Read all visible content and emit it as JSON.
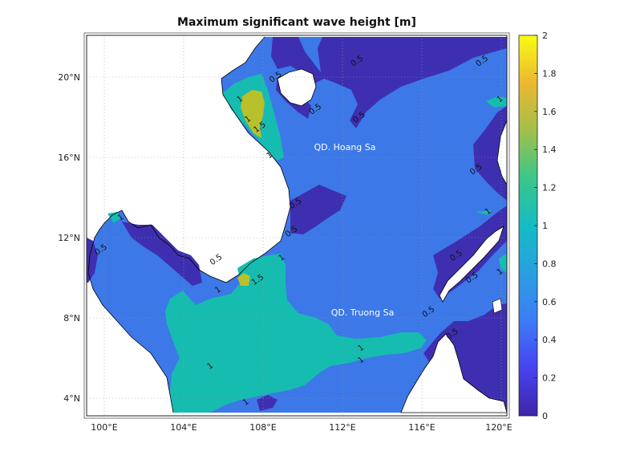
{
  "title": "Maximum significant wave height [m]",
  "x_ticks": [
    "100°E",
    "104°E",
    "108°E",
    "112°E",
    "116°E",
    "120°E"
  ],
  "y_ticks": [
    "20°N",
    "16°N",
    "12°N",
    "8°N",
    "4°N"
  ],
  "colorbar_ticks": [
    "2",
    "1.8",
    "1.6",
    "1.4",
    "1.2",
    "1",
    "0.8",
    "0.6",
    "0.4",
    "0.2",
    "0"
  ],
  "colors": {
    "land": "#ffffff",
    "level_0": "#3e2fb0",
    "level_05": "#3c78e8",
    "level_1": "#16bcb0",
    "level_15": "#b8c02a",
    "colormap": [
      "#3e26a8",
      "#4743f0",
      "#3d7cf6",
      "#2a9fe0",
      "#14bcc4",
      "#3bc68a",
      "#a2c04a",
      "#ecb830",
      "#f9fb15"
    ]
  },
  "place_labels": [
    "QD. Hoang Sa",
    "QD. Truong Sa"
  ],
  "contour_labels": [
    {
      "text": "0.5",
      "lon": 112.8,
      "lat": 20.7
    },
    {
      "text": "0.5",
      "lon": 119.1,
      "lat": 20.7
    },
    {
      "text": "0.5",
      "lon": 108.7,
      "lat": 19.9
    },
    {
      "text": "0.5",
      "lon": 110.7,
      "lat": 18.3
    },
    {
      "text": "0.5",
      "lon": 112.9,
      "lat": 17.9
    },
    {
      "text": "1",
      "lon": 106.9,
      "lat": 18.8
    },
    {
      "text": "1",
      "lon": 107.3,
      "lat": 17.8
    },
    {
      "text": "1.5",
      "lon": 107.9,
      "lat": 17.4
    },
    {
      "text": "1",
      "lon": 108.4,
      "lat": 16.0
    },
    {
      "text": "1",
      "lon": 120.0,
      "lat": 18.8
    },
    {
      "text": "0.5",
      "lon": 118.8,
      "lat": 15.3
    },
    {
      "text": "0.5",
      "lon": 109.7,
      "lat": 13.6
    },
    {
      "text": "0.5",
      "lon": 109.5,
      "lat": 12.2
    },
    {
      "text": "1",
      "lon": 119.4,
      "lat": 13.2
    },
    {
      "text": "1",
      "lon": 100.9,
      "lat": 12.9
    },
    {
      "text": "0.5",
      "lon": 99.9,
      "lat": 11.3
    },
    {
      "text": "0.5",
      "lon": 105.7,
      "lat": 10.8
    },
    {
      "text": "1",
      "lon": 109.0,
      "lat": 10.9
    },
    {
      "text": "0.5",
      "lon": 117.8,
      "lat": 11.0
    },
    {
      "text": "0.5",
      "lon": 118.6,
      "lat": 9.9
    },
    {
      "text": "1",
      "lon": 120.0,
      "lat": 10.2
    },
    {
      "text": "1.5",
      "lon": 107.8,
      "lat": 9.8
    },
    {
      "text": "1",
      "lon": 105.8,
      "lat": 9.3
    },
    {
      "text": "0.5",
      "lon": 116.4,
      "lat": 8.2
    },
    {
      "text": "0.5",
      "lon": 117.6,
      "lat": 7.1
    },
    {
      "text": "1",
      "lon": 113.0,
      "lat": 6.4
    },
    {
      "text": "1",
      "lon": 113.0,
      "lat": 5.8
    },
    {
      "text": "1",
      "lon": 105.4,
      "lat": 5.5
    },
    {
      "text": "1",
      "lon": 107.2,
      "lat": 3.7
    }
  ]
}
